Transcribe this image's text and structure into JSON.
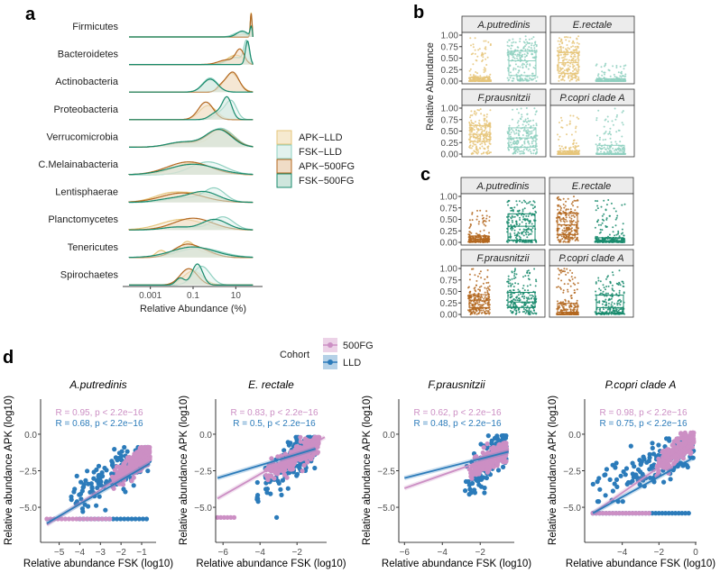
{
  "colors": {
    "apk_lld": "#e6c57a",
    "fsk_lld": "#8fd0c0",
    "apk_500fg": "#b3671f",
    "fsk_500fg": "#178a6c",
    "cohort_500fg": "#cc8fc4",
    "cohort_lld": "#2b7bba",
    "strip_bg": "#ececec"
  },
  "chart_data": [
    {
      "panel": "a",
      "type": "area",
      "xlabel": "Relative Abundance (%)",
      "xscale": "log10",
      "xlim_log10": [
        -4,
        2
      ],
      "xticks": [
        {
          "value": 0.001,
          "label": "0.001"
        },
        {
          "value": 0.1,
          "label": "0.1"
        },
        {
          "value": 10,
          "label": "10"
        }
      ],
      "legend": {
        "placement": "right",
        "entries": [
          "APK−LLD",
          "FSK−LLD",
          "APK−500FG",
          "FSK−500FG"
        ]
      },
      "rows": [
        {
          "name": "Firmicutes",
          "modes": {
            "apk_lld": [
              [
                1.72,
                0.04,
                1.0
              ],
              [
                1.3,
                0.3,
                0.1
              ]
            ],
            "fsk_lld": [
              [
                1.72,
                0.04,
                0.9
              ],
              [
                1.2,
                0.3,
                0.2
              ]
            ],
            "apk_500fg": [
              [
                1.72,
                0.04,
                1.0
              ]
            ],
            "fsk_500fg": [
              [
                1.72,
                0.05,
                0.4
              ],
              [
                1.3,
                0.25,
                0.25
              ]
            ]
          }
        },
        {
          "name": "Bacteroidetes",
          "modes": {
            "apk_lld": [
              [
                1.0,
                0.4,
                0.4
              ]
            ],
            "fsk_lld": [
              [
                1.5,
                0.12,
                0.9
              ],
              [
                1.0,
                0.4,
                0.3
              ]
            ],
            "apk_500fg": [
              [
                1.2,
                0.2,
                0.6
              ],
              [
                0.6,
                0.4,
                0.2
              ]
            ],
            "fsk_500fg": [
              [
                1.55,
                0.1,
                1.0
              ]
            ]
          }
        },
        {
          "name": "Actinobacteria",
          "modes": {
            "apk_lld": [
              [
                0.8,
                0.35,
                0.8
              ]
            ],
            "fsk_lld": [
              [
                -0.2,
                0.35,
                0.6
              ]
            ],
            "apk_500fg": [
              [
                0.85,
                0.3,
                0.85
              ],
              [
                0.3,
                0.2,
                0.2
              ]
            ],
            "fsk_500fg": [
              [
                -0.2,
                0.35,
                0.55
              ]
            ]
          }
        },
        {
          "name": "Proteobacteria",
          "modes": {
            "apk_lld": [
              [
                -0.3,
                0.4,
                0.6
              ]
            ],
            "fsk_lld": [
              [
                0.8,
                0.25,
                0.75
              ],
              [
                0.3,
                0.3,
                0.3
              ]
            ],
            "apk_500fg": [
              [
                -0.4,
                0.35,
                0.75
              ]
            ],
            "fsk_500fg": [
              [
                0.6,
                0.22,
                0.9
              ],
              [
                0.1,
                0.3,
                0.3
              ]
            ]
          }
        },
        {
          "name": "Verrucomicrobia",
          "modes": {
            "apk_lld": [
              [
                0.4,
                0.55,
                0.75
              ],
              [
                -1.5,
                0.7,
                0.2
              ]
            ],
            "fsk_lld": [
              [
                0.3,
                0.6,
                0.8
              ],
              [
                -1.5,
                0.7,
                0.2
              ]
            ],
            "apk_500fg": [
              [
                0.25,
                0.6,
                0.75
              ],
              [
                -1.5,
                0.7,
                0.2
              ]
            ],
            "fsk_500fg": [
              [
                0.2,
                0.6,
                0.75
              ],
              [
                -1.5,
                0.7,
                0.22
              ]
            ]
          }
        },
        {
          "name": "C.Melainabacteria",
          "modes": {
            "apk_lld": [
              [
                -1.0,
                0.9,
                0.5
              ]
            ],
            "fsk_lld": [
              [
                -0.3,
                0.8,
                0.55
              ]
            ],
            "apk_500fg": [
              [
                -1.2,
                1.0,
                0.55
              ]
            ],
            "fsk_500fg": [
              [
                -1.0,
                1.1,
                0.45
              ]
            ]
          }
        },
        {
          "name": "Lentisphaerae",
          "modes": {
            "apk_lld": [
              [
                -2.0,
                0.8,
                0.4
              ],
              [
                -0.5,
                0.7,
                0.3
              ]
            ],
            "fsk_lld": [
              [
                0.0,
                0.5,
                0.6
              ],
              [
                -1.5,
                0.7,
                0.2
              ]
            ],
            "apk_500fg": [
              [
                -1.5,
                1.0,
                0.4
              ]
            ],
            "fsk_500fg": [
              [
                -0.5,
                0.7,
                0.45
              ],
              [
                -2.0,
                0.7,
                0.15
              ]
            ]
          }
        },
        {
          "name": "Planctomycetes",
          "modes": {
            "apk_lld": [
              [
                -1.5,
                1.0,
                0.45
              ]
            ],
            "fsk_lld": [
              [
                0.4,
                0.5,
                0.55
              ],
              [
                -1.5,
                0.8,
                0.15
              ]
            ],
            "apk_500fg": [
              [
                -1.0,
                0.9,
                0.5
              ]
            ],
            "fsk_500fg": [
              [
                0.0,
                0.6,
                0.45
              ],
              [
                -1.8,
                0.6,
                0.12
              ]
            ]
          }
        },
        {
          "name": "Tenericutes",
          "modes": {
            "apk_lld": [
              [
                -1.3,
                0.35,
                0.6
              ],
              [
                -2.5,
                0.25,
                0.3
              ],
              [
                -0.5,
                0.6,
                0.2
              ]
            ],
            "fsk_lld": [
              [
                -0.7,
                1.0,
                0.4
              ]
            ],
            "apk_500fg": [
              [
                -1.3,
                0.6,
                0.55
              ],
              [
                -0.3,
                0.5,
                0.15
              ]
            ],
            "fsk_500fg": [
              [
                -1.0,
                1.0,
                0.45
              ]
            ]
          }
        },
        {
          "name": "Spirochaetes",
          "modes": {
            "apk_lld": [
              [
                -1.0,
                0.45,
                0.6
              ]
            ],
            "fsk_lld": [
              [
                -0.6,
                0.4,
                0.8
              ]
            ],
            "apk_500fg": [
              [
                -1.2,
                0.4,
                0.7
              ]
            ],
            "fsk_500fg": [
              [
                -0.8,
                0.25,
                0.9
              ],
              [
                -1.6,
                0.2,
                0.3
              ]
            ]
          }
        }
      ]
    },
    {
      "panel": "b",
      "type": "box",
      "ylabel": "Relative Abundance",
      "ylim": [
        0,
        1
      ],
      "yticks": [
        "0.00",
        "0.25",
        "0.50",
        "0.75",
        "1.00"
      ],
      "facets": [
        {
          "title": "A.putredinis",
          "apk": {
            "q1": 0.0,
            "median": 0.02,
            "q3": 0.08,
            "max": 1.0
          },
          "fsk": {
            "q1": 0.12,
            "median": 0.44,
            "q3": 0.65,
            "max": 0.98
          }
        },
        {
          "title": "E.rectale",
          "apk": {
            "q1": 0.17,
            "median": 0.4,
            "q3": 0.62,
            "max": 1.0
          },
          "fsk": {
            "q1": 0.0,
            "median": 0.01,
            "q3": 0.05,
            "max": 0.38
          }
        },
        {
          "title": "F.prausnitzii",
          "apk": {
            "q1": 0.27,
            "median": 0.43,
            "q3": 0.62,
            "max": 0.98
          },
          "fsk": {
            "q1": 0.15,
            "median": 0.35,
            "q3": 0.57,
            "max": 1.0
          }
        },
        {
          "title": "P.copri clade A",
          "apk": {
            "q1": 0.0,
            "median": 0.01,
            "q3": 0.07,
            "max": 0.85
          },
          "fsk": {
            "q1": 0.0,
            "median": 0.01,
            "q3": 0.19,
            "max": 1.0
          }
        }
      ]
    },
    {
      "panel": "c",
      "type": "box",
      "ylim": [
        0,
        1
      ],
      "yticks": [
        "0.00",
        "0.25",
        "0.50",
        "0.75",
        "1.00"
      ],
      "facets": [
        {
          "title": "A.putredinis",
          "apk": {
            "q1": 0.02,
            "median": 0.07,
            "q3": 0.14,
            "max": 0.73
          },
          "fsk": {
            "q1": 0.05,
            "median": 0.35,
            "q3": 0.62,
            "max": 0.98
          }
        },
        {
          "title": "E.rectale",
          "apk": {
            "q1": 0.17,
            "median": 0.38,
            "q3": 0.63,
            "max": 1.0
          },
          "fsk": {
            "q1": 0.01,
            "median": 0.04,
            "q3": 0.1,
            "max": 1.0
          }
        },
        {
          "title": "F.prausnitzii",
          "apk": {
            "q1": 0.15,
            "median": 0.3,
            "q3": 0.43,
            "max": 1.0
          },
          "fsk": {
            "q1": 0.15,
            "median": 0.27,
            "q3": 0.48,
            "max": 1.0
          }
        },
        {
          "title": "P.copri clade A",
          "apk": {
            "q1": 0.0,
            "median": 0.05,
            "q3": 0.24,
            "max": 1.0
          },
          "fsk": {
            "q1": 0.03,
            "median": 0.15,
            "q3": 0.42,
            "max": 0.98
          }
        }
      ]
    },
    {
      "panel": "d",
      "type": "scatter",
      "legend": {
        "title": "Cohort",
        "placement": "top",
        "entries": [
          "500FG",
          "LLD"
        ]
      },
      "xlabel": "Relative abundance FSK (log10)",
      "ylabel": "Relative abundance APK (log10)",
      "ylim": [
        -7.4,
        2.4
      ],
      "yticks": [
        {
          "value": 0,
          "label": "0.0"
        },
        {
          "value": -2.5,
          "label": "−2.5"
        },
        {
          "value": -5,
          "label": "−5.0"
        }
      ],
      "panels": [
        {
          "title": "A.putredinis",
          "xlim": [
            -5.9,
            -0.3
          ],
          "xticks": [
            {
              "value": -5,
              "label": "−5"
            },
            {
              "value": -4,
              "label": "−4"
            },
            {
              "value": -3,
              "label": "−3"
            },
            {
              "value": -2,
              "label": "−2"
            },
            {
              "value": -1,
              "label": "−1"
            }
          ],
          "stat_500fg": "R = 0.95, p < 2.2e−16",
          "stat_lld": "R = 0.68, p < 2.2e−16",
          "fit_500fg": [
            [
              -5.6,
              -6.2
            ],
            [
              -0.6,
              -1.6
            ]
          ],
          "fit_lld": [
            [
              -5.6,
              -6.1
            ],
            [
              -0.6,
              -2.0
            ]
          ],
          "cluster_500fg": {
            "x": [
              -2.5,
              -0.6
            ],
            "y": [
              -3.2,
              -1.3
            ]
          },
          "cluster_lld": {
            "x": [
              -4.5,
              -0.6
            ],
            "y": [
              -4.5,
              -1.3
            ]
          },
          "floor": -5.8,
          "floor_500fg_x": [
            -5.6,
            -2.5
          ],
          "floor_lld_x": [
            -4.0,
            -0.6
          ]
        },
        {
          "title": "E. rectale",
          "xlim": [
            -6.4,
            -0.4
          ],
          "xticks": [
            {
              "value": -6,
              "label": "−6"
            },
            {
              "value": -4,
              "label": "−4"
            },
            {
              "value": -2,
              "label": "−2"
            }
          ],
          "stat_500fg": "R = 0.83, p < 2.2e−16",
          "stat_lld": "R = 0.5, p < 2.2e−16",
          "fit_500fg": [
            [
              -6.3,
              -4.4
            ],
            [
              -0.5,
              -0.2
            ]
          ],
          "fit_lld": [
            [
              -6.3,
              -3.0
            ],
            [
              -1.0,
              -1.0
            ]
          ],
          "cluster_500fg": {
            "x": [
              -4.0,
              -0.8
            ],
            "y": [
              -3.0,
              -0.6
            ]
          },
          "cluster_lld": {
            "x": [
              -4.2,
              -1.0
            ],
            "y": [
              -3.8,
              -0.6
            ]
          },
          "floor": -5.7,
          "floor_500fg_x": [
            -6.3,
            -5.4
          ],
          "floor_lld_x": [
            -3.1,
            -3.0
          ]
        },
        {
          "title": "F.prausnitzii",
          "xlim": [
            -6.3,
            -0.2
          ],
          "xticks": [
            {
              "value": -6,
              "label": "−6"
            },
            {
              "value": -4,
              "label": "−4"
            },
            {
              "value": -2,
              "label": "−2"
            }
          ],
          "stat_500fg": "R = 0.62, p < 2.2e−16",
          "stat_lld": "R = 0.48, p < 2.2e−16",
          "fit_500fg": [
            [
              -6.0,
              -3.7
            ],
            [
              -0.5,
              -1.2
            ]
          ],
          "fit_lld": [
            [
              -6.0,
              -3.0
            ],
            [
              -0.5,
              -1.2
            ]
          ],
          "cluster_500fg": {
            "x": [
              -2.6,
              -0.6
            ],
            "y": [
              -2.6,
              -1.0
            ]
          },
          "cluster_lld": {
            "x": [
              -3.0,
              -0.6
            ],
            "y": [
              -3.8,
              -0.5
            ]
          },
          "floor": null,
          "floor_500fg_x": null,
          "floor_lld_x": null
        },
        {
          "title": "P.copri clade A",
          "xlim": [
            -6.05,
            0.05
          ],
          "xticks": [
            {
              "value": -4,
              "label": "−4"
            },
            {
              "value": -2,
              "label": "−2"
            },
            {
              "value": 0,
              "label": "0"
            }
          ],
          "stat_500fg": "R = 0.98, p < 2.2e−16",
          "stat_lld": "R = 0.75, p < 2.2e−16",
          "fit_500fg": [
            [
              -5.6,
              -5.4
            ],
            [
              -0.1,
              -0.6
            ]
          ],
          "fit_lld": [
            [
              -5.6,
              -5.4
            ],
            [
              -0.1,
              -1.6
            ]
          ],
          "cluster_500fg": {
            "x": [
              -2.2,
              -0.1
            ],
            "y": [
              -2.2,
              -0.3
            ]
          },
          "cluster_lld": {
            "x": [
              -5.6,
              -0.1
            ],
            "y": [
              -3.8,
              -0.7
            ]
          },
          "floor": -5.4,
          "floor_500fg_x": [
            -5.6,
            -2.5
          ],
          "floor_lld_x": [
            -5.6,
            -0.3
          ]
        }
      ]
    }
  ]
}
